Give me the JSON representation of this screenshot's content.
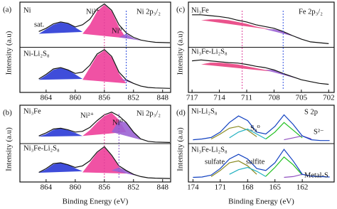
{
  "chart_data": [
    {
      "type": "line",
      "panel_label": "(a)",
      "ylabel": "Intensity (a.u)",
      "xlim": [
        867.6,
        846.9
      ],
      "ylim": [
        0,
        2
      ],
      "xticks": [
        864,
        860,
        856,
        852,
        848
      ],
      "x": [
        865,
        864,
        863,
        862,
        861,
        860,
        859,
        858,
        857,
        856,
        855,
        854,
        853,
        852,
        851,
        850,
        849,
        847
      ],
      "series": [
        {
          "style": "area",
          "color": "#2a3ad6",
          "values": [
            1.3,
            1.4,
            1.5,
            1.55,
            1.52,
            1.44,
            1.34,
            null,
            null,
            null,
            null,
            null,
            null,
            null,
            null,
            null,
            null,
            null
          ]
        },
        {
          "style": "area",
          "color": "#ee3f9a",
          "values": [
            null,
            null,
            null,
            null,
            null,
            null,
            1.3,
            1.5,
            1.8,
            1.94,
            1.8,
            1.45,
            1.2,
            null,
            null,
            null,
            null,
            null
          ]
        },
        {
          "style": "area",
          "color": "#9b63d4",
          "values": [
            null,
            null,
            null,
            null,
            null,
            null,
            null,
            null,
            null,
            null,
            null,
            1.22,
            1.3,
            1.2,
            1.15,
            null,
            null,
            null
          ]
        },
        {
          "style": "line",
          "color": "#111111",
          "values": [
            1.35,
            1.42,
            1.52,
            1.56,
            1.53,
            1.45,
            1.5,
            1.62,
            1.85,
            1.96,
            1.82,
            1.5,
            1.32,
            1.22,
            1.16,
            1.13,
            1.11,
            1.1
          ]
        },
        {
          "style": "area",
          "color": "#2a3ad6",
          "values": [
            0.28,
            0.38,
            0.5,
            0.54,
            0.5,
            0.4,
            0.3,
            null,
            null,
            null,
            null,
            null,
            null,
            null,
            null,
            null,
            null,
            null
          ]
        },
        {
          "style": "area",
          "color": "#ee3f9a",
          "values": [
            null,
            null,
            null,
            null,
            null,
            null,
            0.28,
            0.55,
            0.82,
            0.93,
            0.78,
            0.42,
            0.2,
            null,
            null,
            null,
            null,
            null
          ]
        },
        {
          "style": "area",
          "color": "#9b63d4",
          "values": [
            null,
            null,
            null,
            null,
            null,
            null,
            null,
            null,
            null,
            null,
            null,
            0.3,
            0.28,
            0.2,
            0.14,
            null,
            null,
            null
          ]
        },
        {
          "style": "line",
          "color": "#111111",
          "values": [
            0.3,
            0.4,
            0.52,
            0.55,
            0.5,
            0.42,
            0.45,
            0.6,
            0.85,
            0.95,
            0.8,
            0.45,
            0.28,
            0.2,
            0.14,
            0.11,
            0.1,
            0.09
          ]
        }
      ],
      "reference_lines": [
        {
          "x": 856,
          "color": "#e0409a"
        },
        {
          "x": 853,
          "color": "#3050e0"
        }
      ],
      "annotations": [
        "Ni",
        "Ni²⁺",
        "Ni 2p₃/₂",
        "sat.",
        "Ni⁰",
        "Ni-Li₂S₈"
      ]
    },
    {
      "type": "line",
      "panel_label": "(b)",
      "ylabel": "Intensity (a.u)",
      "xlabel": "Binding Energy (eV)",
      "xlim": [
        867.6,
        846.9
      ],
      "ylim": [
        0,
        2
      ],
      "xticks": [
        864,
        860,
        856,
        852,
        848
      ],
      "x": [
        865,
        864,
        863,
        862,
        861,
        860,
        859,
        858,
        857,
        856,
        855,
        854,
        853,
        852,
        851,
        850,
        849,
        847
      ],
      "series": [
        {
          "style": "area",
          "color": "#2a3ad6",
          "values": [
            1.18,
            1.25,
            1.36,
            1.4,
            1.35,
            1.28,
            1.2,
            null,
            null,
            null,
            null,
            null,
            null,
            null,
            null,
            null,
            null,
            null
          ]
        },
        {
          "style": "area",
          "color": "#ee3f9a",
          "values": [
            null,
            null,
            null,
            null,
            null,
            null,
            1.2,
            1.35,
            1.55,
            1.72,
            1.8,
            1.62,
            1.3,
            null,
            null,
            null,
            null,
            null
          ]
        },
        {
          "style": "area",
          "color": "#9b63d4",
          "values": [
            null,
            null,
            null,
            null,
            null,
            null,
            null,
            null,
            null,
            null,
            1.3,
            1.6,
            1.55,
            1.3,
            1.1,
            null,
            null,
            null
          ]
        },
        {
          "style": "line",
          "color": "#111111",
          "values": [
            1.2,
            1.28,
            1.38,
            1.4,
            1.36,
            1.3,
            1.32,
            1.42,
            1.6,
            1.75,
            1.82,
            1.72,
            1.55,
            1.3,
            1.12,
            1.06,
            1.04,
            1.03
          ]
        },
        {
          "style": "area",
          "color": "#2a3ad6",
          "values": [
            0.24,
            0.33,
            0.46,
            0.5,
            0.45,
            0.36,
            0.28,
            null,
            null,
            null,
            null,
            null,
            null,
            null,
            null,
            null,
            null,
            null
          ]
        },
        {
          "style": "area",
          "color": "#ee3f9a",
          "values": [
            null,
            null,
            null,
            null,
            null,
            null,
            0.25,
            0.5,
            0.76,
            0.9,
            0.68,
            0.4,
            0.22,
            null,
            null,
            null,
            null,
            null
          ]
        },
        {
          "style": "area",
          "color": "#9b63d4",
          "values": [
            null,
            null,
            null,
            null,
            null,
            null,
            null,
            null,
            null,
            null,
            0.3,
            0.38,
            0.3,
            0.2,
            0.14,
            null,
            null,
            null
          ]
        },
        {
          "style": "line",
          "color": "#111111",
          "values": [
            0.25,
            0.35,
            0.48,
            0.5,
            0.45,
            0.38,
            0.42,
            0.55,
            0.78,
            0.92,
            0.7,
            0.42,
            0.3,
            0.2,
            0.14,
            0.11,
            0.1,
            0.09
          ]
        }
      ],
      "reference_lines": [
        {
          "x": 856,
          "color": "#e0409a"
        },
        {
          "x": 854,
          "color": "#8a50d0"
        }
      ],
      "annotations": [
        "Ni₃Fe",
        "Ni²⁺",
        "Ni⁰",
        "Ni 2p₃/₂",
        "Ni₃Fe-Li₂S₈"
      ]
    },
    {
      "type": "line",
      "panel_label": "(c)",
      "ylabel": "Intensity (a.u)",
      "xlim": [
        717.4,
        701.4
      ],
      "ylim": [
        0,
        2
      ],
      "xticks": [
        717,
        714,
        711,
        708,
        705,
        702
      ],
      "x": [
        717,
        716,
        715,
        714,
        713,
        712,
        711,
        710,
        709,
        708,
        707,
        706,
        705,
        704,
        703,
        702
      ],
      "series": [
        {
          "style": "area",
          "color": "#e8407f",
          "values": [
            null,
            1.6,
            1.62,
            1.62,
            1.6,
            1.56,
            1.52,
            1.46,
            1.42,
            1.38,
            null,
            null,
            null,
            null,
            null,
            null
          ]
        },
        {
          "style": "area",
          "color": "#9b63d4",
          "values": [
            null,
            null,
            null,
            null,
            null,
            null,
            null,
            null,
            1.4,
            1.4,
            1.35,
            1.26,
            1.2,
            null,
            null,
            null
          ]
        },
        {
          "style": "line",
          "color": "#111111",
          "values": [
            1.72,
            1.72,
            1.7,
            1.68,
            1.65,
            1.6,
            1.56,
            1.5,
            1.46,
            1.42,
            1.35,
            1.26,
            1.18,
            1.12,
            1.1,
            1.08
          ]
        },
        {
          "style": "area",
          "color": "#e8407f",
          "values": [
            null,
            0.62,
            0.66,
            0.66,
            0.64,
            0.62,
            0.58,
            0.54,
            0.5,
            0.46,
            null,
            null,
            null,
            null,
            null,
            null
          ]
        },
        {
          "style": "area",
          "color": "#9b63d4",
          "values": [
            null,
            null,
            null,
            null,
            null,
            null,
            null,
            null,
            0.5,
            0.5,
            0.42,
            0.34,
            0.28,
            null,
            null,
            null
          ]
        },
        {
          "style": "line",
          "color": "#111111",
          "values": [
            0.7,
            0.72,
            0.7,
            0.68,
            0.66,
            0.65,
            0.62,
            0.58,
            0.55,
            0.5,
            0.42,
            0.35,
            0.28,
            0.24,
            0.2,
            0.18
          ]
        }
      ],
      "reference_lines": [
        {
          "x": 711.5,
          "color": "#e0409a"
        },
        {
          "x": 707,
          "color": "#3050e0"
        }
      ],
      "annotations": [
        "Ni₃Fe",
        "Fe 2p₃/₂",
        "Ni₃Fe-Li₂S₈"
      ]
    },
    {
      "type": "line",
      "panel_label": "(d)",
      "ylabel": "Intensity (a.u)",
      "xlabel": "Binding Energy (eV)",
      "xlim": [
        174.5,
        158.5
      ],
      "ylim": [
        0,
        2
      ],
      "xticks": [
        174,
        171,
        168,
        165,
        162
      ],
      "x": [
        174,
        173,
        172,
        171,
        170,
        169,
        168,
        167,
        166,
        165,
        164,
        163,
        162,
        161,
        160,
        159
      ],
      "series": [
        {
          "style": "line",
          "color": "#8a8a20",
          "values": [
            null,
            null,
            1.12,
            1.25,
            1.4,
            1.45,
            1.35,
            1.18,
            null,
            null,
            null,
            null,
            null,
            null,
            null,
            null
          ]
        },
        {
          "style": "line",
          "color": "#20b0c0",
          "values": [
            null,
            null,
            null,
            null,
            1.15,
            1.3,
            1.38,
            1.25,
            1.12,
            null,
            null,
            null,
            null,
            null,
            null,
            null
          ]
        },
        {
          "style": "line",
          "color": "#20c020",
          "values": [
            null,
            null,
            null,
            null,
            null,
            null,
            null,
            null,
            1.12,
            1.3,
            1.55,
            1.35,
            1.15,
            null,
            null,
            null
          ]
        },
        {
          "style": "line",
          "color": "#9050c0",
          "values": [
            null,
            null,
            null,
            null,
            null,
            null,
            null,
            null,
            null,
            null,
            1.1,
            1.15,
            1.2,
            1.12,
            null,
            null
          ]
        },
        {
          "style": "line",
          "color": "#1040c0",
          "values": [
            1.1,
            1.12,
            1.16,
            1.3,
            1.55,
            1.72,
            1.6,
            1.3,
            1.25,
            1.45,
            1.75,
            1.5,
            1.2,
            1.1,
            1.08,
            1.08
          ]
        },
        {
          "style": "line",
          "color": "#8a8a20",
          "values": [
            null,
            null,
            0.14,
            0.3,
            0.5,
            0.55,
            0.42,
            0.2,
            null,
            null,
            null,
            null,
            null,
            null,
            null,
            null
          ]
        },
        {
          "style": "line",
          "color": "#20b0c0",
          "values": [
            null,
            null,
            null,
            null,
            0.2,
            0.32,
            0.38,
            0.28,
            0.14,
            null,
            null,
            null,
            null,
            null,
            null,
            null
          ]
        },
        {
          "style": "line",
          "color": "#20c020",
          "values": [
            null,
            null,
            null,
            null,
            null,
            null,
            null,
            null,
            0.15,
            0.38,
            0.65,
            0.45,
            0.18,
            null,
            null,
            null
          ]
        },
        {
          "style": "line",
          "color": "#9050c0",
          "values": [
            null,
            null,
            null,
            null,
            null,
            null,
            null,
            null,
            null,
            null,
            0.12,
            0.14,
            0.2,
            0.15,
            null,
            null
          ]
        },
        {
          "style": "line",
          "color": "#1040c0",
          "values": [
            0.12,
            0.13,
            0.18,
            0.35,
            0.6,
            0.72,
            0.6,
            0.35,
            0.3,
            0.5,
            0.85,
            0.55,
            0.2,
            0.15,
            0.14,
            0.13
          ]
        }
      ],
      "reference_lines": [],
      "annotations": [
        "Ni-Li₂S₈",
        "S 2p",
        "S₈⁰",
        "S²⁻",
        "Ni₃Fe-Li₂S₈",
        "sulfate",
        "sulfite",
        "Metal-S"
      ]
    }
  ]
}
